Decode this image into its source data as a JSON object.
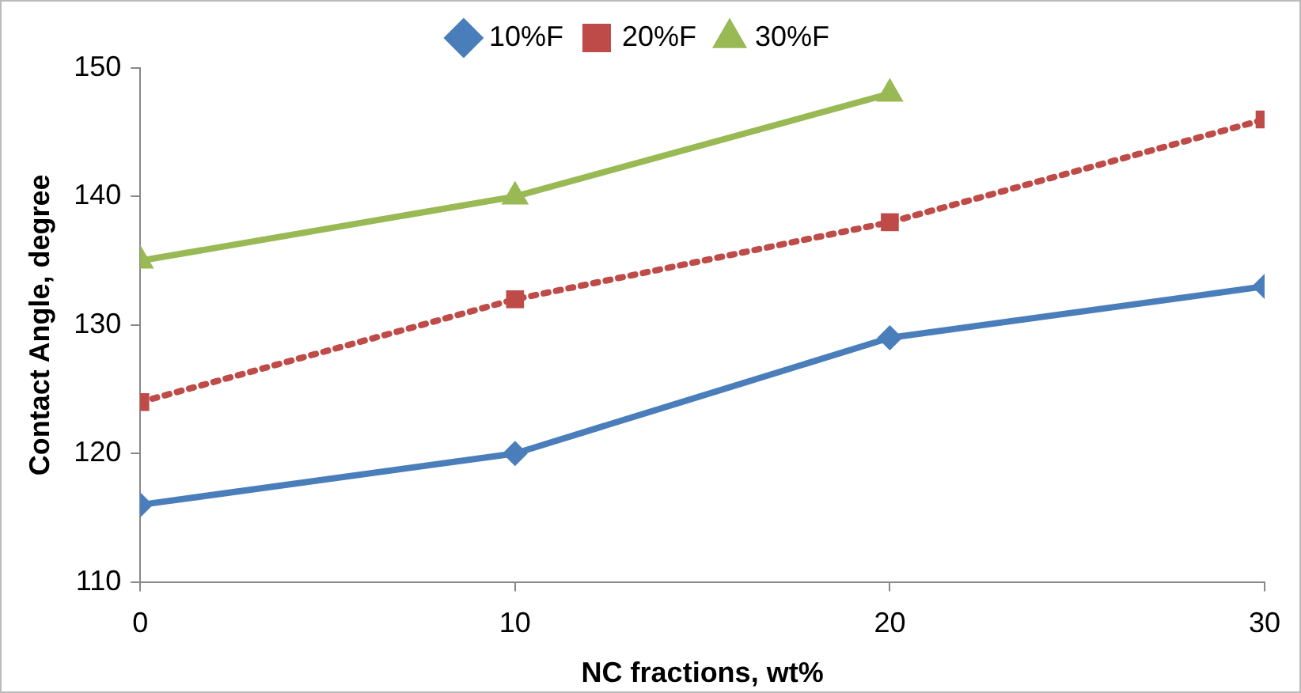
{
  "chart_data": {
    "type": "line",
    "xlabel": "NC fractions, wt%",
    "ylabel": "Contact Angle, degree",
    "x": [
      0,
      10,
      20,
      30
    ],
    "series": [
      {
        "name": "10%F",
        "color": "#4a7ebb",
        "values": [
          116,
          120,
          129,
          133
        ],
        "marker": "diamond",
        "line_style": "solid"
      },
      {
        "name": "20%F",
        "color": "#be4b48",
        "values": [
          124,
          132,
          138,
          146
        ],
        "marker": "square",
        "line_style": "dotted"
      },
      {
        "name": "30%F",
        "color": "#98b954",
        "values": [
          135,
          140,
          148,
          null
        ],
        "marker": "triangle",
        "line_style": "solid"
      }
    ],
    "xlim": [
      0,
      30
    ],
    "xticks": [
      0,
      10,
      20,
      30
    ],
    "ylim": [
      110,
      150
    ],
    "yticks": [
      110,
      120,
      130,
      140,
      150
    ],
    "grid": false,
    "legend": "top"
  }
}
